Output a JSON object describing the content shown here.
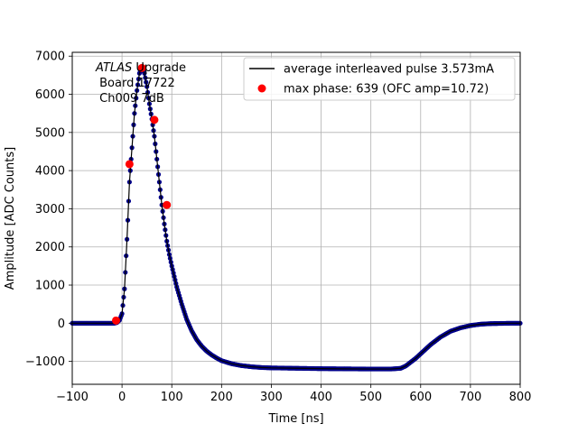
{
  "chart_data": {
    "type": "line",
    "xlabel": "Time [ns]",
    "ylabel": "Amplitude [ADC Counts]",
    "xlim": [
      -100,
      800
    ],
    "ylim": [
      -1600,
      7100
    ],
    "xticks": [
      -100,
      0,
      100,
      200,
      300,
      400,
      500,
      600,
      700,
      800
    ],
    "yticks": [
      -1000,
      0,
      1000,
      2000,
      3000,
      4000,
      5000,
      6000,
      7000
    ],
    "grid": true,
    "legend_position": "top-right",
    "annotation": {
      "line1_italic": "ATLAS",
      "line1_rest": " Upgrade",
      "line2": " Board 17722",
      "line3": " Ch009 7dB"
    },
    "series": [
      {
        "name": "average interleaved pulse 3.573mA",
        "color": "#000000",
        "marker_color": "#00008b",
        "x": [
          -100,
          -50,
          -15,
          -10,
          -5,
          0,
          5,
          10,
          15,
          20,
          25,
          30,
          35,
          40,
          45,
          50,
          55,
          60,
          65,
          70,
          75,
          80,
          85,
          90,
          95,
          100,
          110,
          120,
          130,
          140,
          150,
          160,
          170,
          180,
          190,
          200,
          220,
          240,
          260,
          280,
          300,
          350,
          400,
          450,
          500,
          540,
          560,
          570,
          580,
          590,
          600,
          620,
          640,
          660,
          680,
          700,
          720,
          740,
          760,
          780,
          800
        ],
        "y": [
          0,
          0,
          0,
          20,
          80,
          250,
          900,
          2200,
          3700,
          4600,
          5500,
          6100,
          6550,
          6700,
          6550,
          6200,
          5750,
          5350,
          4900,
          4300,
          3700,
          3100,
          2600,
          2150,
          1800,
          1500,
          950,
          500,
          100,
          -200,
          -430,
          -600,
          -730,
          -830,
          -910,
          -980,
          -1060,
          -1110,
          -1140,
          -1160,
          -1170,
          -1180,
          -1190,
          -1195,
          -1200,
          -1200,
          -1180,
          -1120,
          -1020,
          -920,
          -800,
          -560,
          -360,
          -210,
          -120,
          -60,
          -25,
          -10,
          -5,
          0,
          0
        ]
      }
    ],
    "markers": {
      "name": "max phase: 639 (OFC amp=10.72)",
      "color": "#ff0000",
      "x": [
        -12,
        15,
        40,
        65,
        90
      ],
      "y": [
        70,
        4170,
        6690,
        5330,
        3100
      ]
    }
  }
}
